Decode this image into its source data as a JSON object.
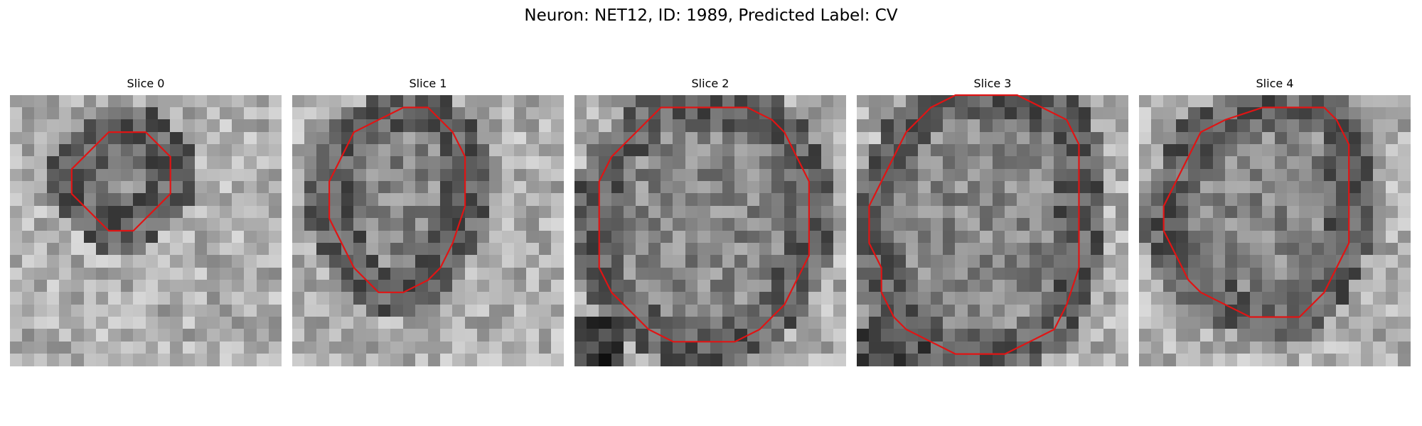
{
  "figure": {
    "title": "Neuron: NET12, ID: 1989, Predicted Label: CV"
  },
  "colors": {
    "contour": "#e01414",
    "colormap": "grayscale"
  },
  "panels": [
    {
      "title": "Slice 0",
      "seed": 11,
      "contour": [
        [
          9,
          3
        ],
        [
          11,
          3
        ],
        [
          13,
          5
        ],
        [
          13,
          8
        ],
        [
          12,
          9
        ],
        [
          11,
          10
        ],
        [
          10,
          11
        ],
        [
          8,
          11
        ],
        [
          7,
          10
        ],
        [
          6,
          9
        ],
        [
          5,
          8
        ],
        [
          5,
          6
        ],
        [
          6,
          5
        ],
        [
          7,
          4
        ],
        [
          8,
          3
        ]
      ]
    },
    {
      "title": "Slice 1",
      "seed": 23,
      "contour": [
        [
          9,
          1
        ],
        [
          11,
          1
        ],
        [
          13,
          3
        ],
        [
          14,
          5
        ],
        [
          14,
          9
        ],
        [
          13,
          12
        ],
        [
          12,
          14
        ],
        [
          11,
          15
        ],
        [
          9,
          16
        ],
        [
          7,
          16
        ],
        [
          6,
          15
        ],
        [
          5,
          14
        ],
        [
          4,
          12
        ],
        [
          3,
          10
        ],
        [
          3,
          7
        ],
        [
          4,
          5
        ],
        [
          5,
          3
        ],
        [
          7,
          2
        ]
      ]
    },
    {
      "title": "Slice 2",
      "seed": 37,
      "contour": [
        [
          11,
          1
        ],
        [
          14,
          1
        ],
        [
          16,
          2
        ],
        [
          17,
          3
        ],
        [
          18,
          5
        ],
        [
          19,
          7
        ],
        [
          19,
          10
        ],
        [
          19,
          13
        ],
        [
          18,
          15
        ],
        [
          17,
          17
        ],
        [
          16,
          18
        ],
        [
          15,
          19
        ],
        [
          13,
          20
        ],
        [
          8,
          20
        ],
        [
          6,
          19
        ],
        [
          5,
          18
        ],
        [
          4,
          17
        ],
        [
          3,
          16
        ],
        [
          2,
          14
        ],
        [
          2,
          10
        ],
        [
          2,
          7
        ],
        [
          3,
          5
        ],
        [
          5,
          3
        ],
        [
          7,
          1
        ]
      ]
    },
    {
      "title": "Slice 3",
      "seed": 53,
      "contour": [
        [
          10,
          0
        ],
        [
          13,
          0
        ],
        [
          15,
          1
        ],
        [
          17,
          2
        ],
        [
          18,
          4
        ],
        [
          18,
          7
        ],
        [
          18,
          11
        ],
        [
          18,
          14
        ],
        [
          17,
          17
        ],
        [
          16,
          19
        ],
        [
          14,
          20
        ],
        [
          12,
          21
        ],
        [
          10,
          21
        ],
        [
          8,
          21
        ],
        [
          6,
          20
        ],
        [
          4,
          19
        ],
        [
          3,
          18
        ],
        [
          2,
          16
        ],
        [
          2,
          14
        ],
        [
          1,
          12
        ],
        [
          1,
          9
        ],
        [
          2,
          7
        ],
        [
          3,
          5
        ],
        [
          4,
          3
        ],
        [
          6,
          1
        ],
        [
          8,
          0
        ]
      ]
    },
    {
      "title": "Slice 4",
      "seed": 71,
      "contour": [
        [
          12,
          1
        ],
        [
          15,
          1
        ],
        [
          16,
          2
        ],
        [
          17,
          4
        ],
        [
          17,
          6
        ],
        [
          17,
          9
        ],
        [
          17,
          12
        ],
        [
          16,
          14
        ],
        [
          15,
          16
        ],
        [
          13,
          18
        ],
        [
          11,
          18
        ],
        [
          9,
          18
        ],
        [
          7,
          17
        ],
        [
          5,
          16
        ],
        [
          4,
          15
        ],
        [
          3,
          13
        ],
        [
          2,
          11
        ],
        [
          2,
          9
        ],
        [
          3,
          7
        ],
        [
          4,
          5
        ],
        [
          5,
          3
        ],
        [
          7,
          2
        ],
        [
          10,
          1
        ]
      ]
    }
  ]
}
